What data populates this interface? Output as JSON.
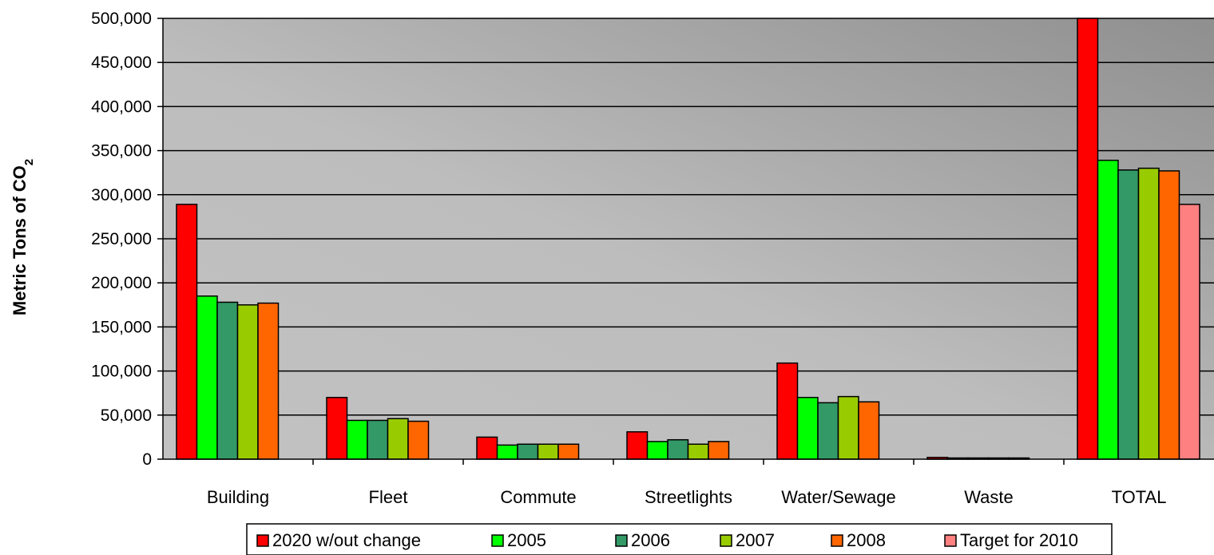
{
  "chart_data": {
    "type": "bar",
    "title": "",
    "xlabel": "",
    "ylabel": "Metric Tons of CO",
    "ylabel_subscript": "2",
    "ylim": [
      0,
      500000
    ],
    "yticks": [
      0,
      50000,
      100000,
      150000,
      200000,
      250000,
      300000,
      350000,
      400000,
      450000,
      500000
    ],
    "ytick_labels": [
      "0",
      "50,000",
      "100,000",
      "150,000",
      "200,000",
      "250,000",
      "300,000",
      "350,000",
      "400,000",
      "450,000",
      "500,000"
    ],
    "grid": true,
    "legend_position": "bottom",
    "categories": [
      "Building",
      "Fleet",
      "Commute",
      "Streetlights",
      "Water/Sewage",
      "Waste",
      "TOTAL"
    ],
    "series": [
      {
        "name": "2020 w/out change",
        "color": "#ff0000",
        "values": [
          289000,
          70000,
          25000,
          31000,
          109000,
          2000,
          500000
        ]
      },
      {
        "name": "2005",
        "color": "#00ff00",
        "values": [
          185000,
          44000,
          16000,
          20000,
          70000,
          1000,
          339000
        ]
      },
      {
        "name": "2006",
        "color": "#339966",
        "values": [
          178000,
          44000,
          17000,
          22000,
          64000,
          1000,
          328000
        ]
      },
      {
        "name": "2007",
        "color": "#99cc00",
        "values": [
          175000,
          46000,
          17000,
          17000,
          71000,
          1000,
          330000
        ]
      },
      {
        "name": "2008",
        "color": "#ff6600",
        "values": [
          177000,
          43000,
          17000,
          20000,
          65000,
          1000,
          327000
        ]
      },
      {
        "name": "Target for 2010",
        "color": "#ff8080",
        "values": [
          null,
          null,
          null,
          null,
          null,
          null,
          289000
        ]
      }
    ]
  }
}
